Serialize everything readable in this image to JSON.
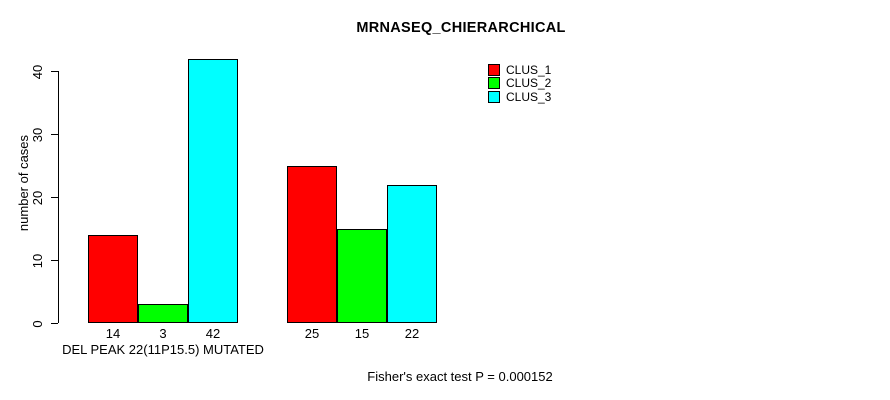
{
  "title": "MRNASEQ_CHIERARCHICAL",
  "y_axis": {
    "label": "number of cases",
    "ticks": [
      0,
      10,
      20,
      30,
      40
    ]
  },
  "x_axis": {
    "group_label": "DEL PEAK 22(11P15.5) MUTATED"
  },
  "legend": {
    "items": [
      {
        "label": "CLUS_1",
        "color": "#FF0000"
      },
      {
        "label": "CLUS_2",
        "color": "#00FF00"
      },
      {
        "label": "CLUS_3",
        "color": "#00FFFF"
      }
    ]
  },
  "annotation": "Fisher's exact test P = 0.000152",
  "colors": {
    "clus_1": "#FF0000",
    "clus_2": "#00FF00",
    "clus_3": "#00FFFF",
    "axis": "#000000",
    "background": "#FFFFFF"
  },
  "chart_data": {
    "type": "bar",
    "categories": [
      "DEL PEAK 22(11P15.5) MUTATED",
      ""
    ],
    "series": [
      {
        "name": "CLUS_1",
        "color": "#FF0000",
        "values": [
          14,
          25
        ]
      },
      {
        "name": "CLUS_2",
        "color": "#00FF00",
        "values": [
          3,
          15
        ]
      },
      {
        "name": "CLUS_3",
        "color": "#00FFFF",
        "values": [
          42,
          22
        ]
      }
    ],
    "bar_value_labels": [
      [
        14,
        3,
        42
      ],
      [
        25,
        15,
        22
      ]
    ],
    "title": "MRNASEQ_CHIERARCHICAL",
    "xlabel": "DEL PEAK 22(11P15.5) MUTATED",
    "ylabel": "number of cases",
    "ylim": [
      0,
      42
    ],
    "yticks": [
      0,
      10,
      20,
      30,
      40
    ],
    "grid": false,
    "legend_position": "top-right",
    "annotation": "Fisher's exact test P = 0.000152"
  }
}
